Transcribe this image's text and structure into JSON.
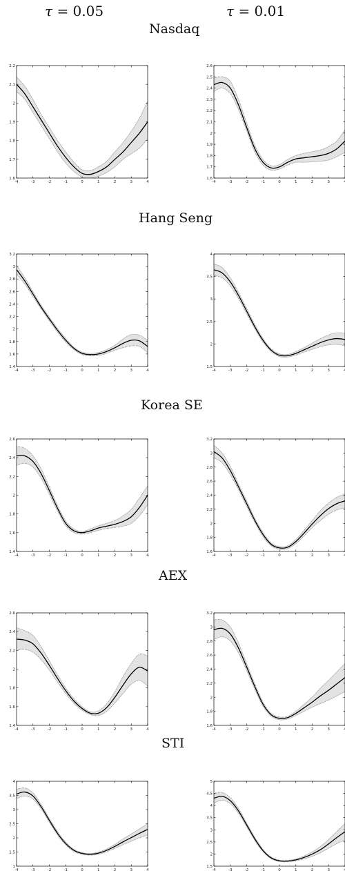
{
  "headers": {
    "col1_symbol": "τ",
    "col1_value": "= 0.05",
    "col2_symbol": "τ",
    "col2_value": "= 0.01"
  },
  "chart_data": [
    {
      "type": "line",
      "index": "Nasdaq",
      "tau": "0.05",
      "xlim": [
        -4,
        4
      ],
      "ylim": [
        1.6,
        2.2
      ],
      "xticks": [
        -4,
        -3,
        -2,
        -1,
        0,
        1,
        2,
        3,
        4
      ],
      "yticks": [
        1.6,
        1.7,
        1.8,
        1.9,
        2,
        2.1,
        2.2
      ],
      "x": [
        -4,
        -3.5,
        -3,
        -2.5,
        -2,
        -1.5,
        -1,
        -0.5,
        0,
        0.5,
        1,
        1.5,
        2,
        2.5,
        3,
        3.5,
        4
      ],
      "y": [
        2.1,
        2.05,
        1.98,
        1.91,
        1.84,
        1.77,
        1.71,
        1.66,
        1.625,
        1.62,
        1.635,
        1.66,
        1.7,
        1.74,
        1.79,
        1.84,
        1.9
      ],
      "lower": [
        2.06,
        2.02,
        1.95,
        1.88,
        1.81,
        1.74,
        1.68,
        1.635,
        1.605,
        1.6,
        1.61,
        1.63,
        1.66,
        1.7,
        1.73,
        1.76,
        1.81
      ],
      "upper": [
        2.14,
        2.09,
        2.02,
        1.94,
        1.87,
        1.8,
        1.74,
        1.685,
        1.645,
        1.64,
        1.66,
        1.69,
        1.74,
        1.79,
        1.85,
        1.92,
        2.01
      ]
    },
    {
      "type": "line",
      "index": "Nasdaq",
      "tau": "0.01",
      "xlim": [
        -4,
        4
      ],
      "ylim": [
        1.6,
        2.6
      ],
      "xticks": [
        -4,
        -3,
        -2,
        -1,
        0,
        1,
        2,
        3,
        4
      ],
      "yticks": [
        1.6,
        1.7,
        1.8,
        1.9,
        2,
        2.1,
        2.2,
        2.3,
        2.4,
        2.5,
        2.6
      ],
      "x": [
        -4,
        -3.5,
        -3,
        -2.5,
        -2,
        -1.5,
        -1,
        -0.5,
        0,
        0.5,
        1,
        1.5,
        2,
        2.5,
        3,
        3.5,
        4
      ],
      "y": [
        2.43,
        2.45,
        2.4,
        2.25,
        2.05,
        1.86,
        1.74,
        1.69,
        1.7,
        1.74,
        1.77,
        1.78,
        1.79,
        1.8,
        1.82,
        1.86,
        1.93
      ],
      "lower": [
        2.37,
        2.4,
        2.35,
        2.21,
        2.02,
        1.83,
        1.715,
        1.67,
        1.68,
        1.715,
        1.74,
        1.74,
        1.745,
        1.75,
        1.76,
        1.79,
        1.83
      ],
      "upper": [
        2.49,
        2.5,
        2.46,
        2.3,
        2.09,
        1.89,
        1.765,
        1.71,
        1.72,
        1.765,
        1.8,
        1.82,
        1.835,
        1.85,
        1.88,
        1.93,
        2.03
      ]
    },
    {
      "type": "line",
      "index": "Hang Seng",
      "tau": "0.05",
      "xlim": [
        -4,
        4
      ],
      "ylim": [
        1.4,
        3.2
      ],
      "xticks": [
        -4,
        -3,
        -2,
        -1,
        0,
        1,
        2,
        3,
        4
      ],
      "yticks": [
        1.4,
        1.6,
        1.8,
        2,
        2.2,
        2.4,
        2.6,
        2.8,
        3,
        3.2
      ],
      "x": [
        -4,
        -3.5,
        -3,
        -2.5,
        -2,
        -1.5,
        -1,
        -0.5,
        0,
        0.5,
        1,
        1.5,
        2,
        2.5,
        3,
        3.5,
        4
      ],
      "y": [
        2.95,
        2.77,
        2.56,
        2.35,
        2.16,
        1.98,
        1.82,
        1.69,
        1.61,
        1.59,
        1.6,
        1.64,
        1.7,
        1.77,
        1.82,
        1.81,
        1.72
      ],
      "lower": [
        2.88,
        2.72,
        2.52,
        2.32,
        2.13,
        1.95,
        1.79,
        1.67,
        1.59,
        1.57,
        1.575,
        1.61,
        1.66,
        1.7,
        1.73,
        1.72,
        1.62
      ],
      "upper": [
        3.02,
        2.82,
        2.6,
        2.38,
        2.19,
        2.01,
        1.85,
        1.71,
        1.63,
        1.61,
        1.625,
        1.67,
        1.74,
        1.84,
        1.91,
        1.9,
        1.82
      ]
    },
    {
      "type": "line",
      "index": "Hang Seng",
      "tau": "0.01",
      "xlim": [
        -4,
        4
      ],
      "ylim": [
        1.5,
        4
      ],
      "xticks": [
        -4,
        -3,
        -2,
        -1,
        0,
        1,
        2,
        3,
        4
      ],
      "yticks": [
        1.5,
        2,
        2.5,
        3,
        3.5,
        4
      ],
      "x": [
        -4,
        -3.5,
        -3,
        -2.5,
        -2,
        -1.5,
        -1,
        -0.5,
        0,
        0.5,
        1,
        1.5,
        2,
        2.5,
        3,
        3.5,
        4
      ],
      "y": [
        3.65,
        3.58,
        3.38,
        3.08,
        2.73,
        2.38,
        2.08,
        1.86,
        1.75,
        1.74,
        1.79,
        1.87,
        1.95,
        2.03,
        2.09,
        2.12,
        2.1
      ],
      "lower": [
        3.52,
        3.47,
        3.29,
        3.01,
        2.67,
        2.33,
        2.04,
        1.83,
        1.72,
        1.71,
        1.75,
        1.82,
        1.88,
        1.94,
        1.98,
        1.99,
        1.96
      ],
      "upper": [
        3.78,
        3.7,
        3.47,
        3.15,
        2.79,
        2.43,
        2.12,
        1.89,
        1.78,
        1.77,
        1.83,
        1.92,
        2.02,
        2.12,
        2.2,
        2.25,
        2.24
      ]
    },
    {
      "type": "line",
      "index": "Korea SE",
      "tau": "0.05",
      "xlim": [
        -4,
        4
      ],
      "ylim": [
        1.4,
        2.6
      ],
      "xticks": [
        -4,
        -3,
        -2,
        -1,
        0,
        1,
        2,
        3,
        4
      ],
      "yticks": [
        1.4,
        1.6,
        1.8,
        2,
        2.2,
        2.4,
        2.6
      ],
      "x": [
        -4,
        -3.5,
        -3,
        -2.5,
        -2,
        -1.5,
        -1,
        -0.5,
        0,
        0.5,
        1,
        1.5,
        2,
        2.5,
        3,
        3.5,
        4
      ],
      "y": [
        2.42,
        2.42,
        2.36,
        2.23,
        2.05,
        1.86,
        1.7,
        1.62,
        1.6,
        1.62,
        1.65,
        1.67,
        1.69,
        1.72,
        1.77,
        1.87,
        2.0
      ],
      "lower": [
        2.32,
        2.34,
        2.3,
        2.18,
        2.01,
        1.83,
        1.675,
        1.6,
        1.585,
        1.6,
        1.625,
        1.645,
        1.655,
        1.67,
        1.7,
        1.78,
        1.9
      ],
      "upper": [
        2.52,
        2.5,
        2.42,
        2.28,
        2.09,
        1.89,
        1.725,
        1.64,
        1.615,
        1.64,
        1.675,
        1.7,
        1.73,
        1.78,
        1.85,
        1.97,
        2.1
      ]
    },
    {
      "type": "line",
      "index": "Korea SE",
      "tau": "0.01",
      "xlim": [
        -4,
        4
      ],
      "ylim": [
        1.6,
        3.2
      ],
      "xticks": [
        -4,
        -3,
        -2,
        -1,
        0,
        1,
        2,
        3,
        4
      ],
      "yticks": [
        1.6,
        1.8,
        2,
        2.2,
        2.4,
        2.6,
        2.8,
        3,
        3.2
      ],
      "x": [
        -4,
        -3.5,
        -3,
        -2.5,
        -2,
        -1.5,
        -1,
        -0.5,
        0,
        0.5,
        1,
        1.5,
        2,
        2.5,
        3,
        3.5,
        4
      ],
      "y": [
        3.02,
        2.93,
        2.75,
        2.52,
        2.28,
        2.04,
        1.84,
        1.7,
        1.65,
        1.66,
        1.74,
        1.86,
        1.99,
        2.11,
        2.21,
        2.28,
        2.32
      ],
      "lower": [
        2.93,
        2.86,
        2.69,
        2.48,
        2.24,
        2.01,
        1.81,
        1.68,
        1.63,
        1.64,
        1.71,
        1.82,
        1.94,
        2.04,
        2.13,
        2.19,
        2.22
      ],
      "upper": [
        3.11,
        3.0,
        2.81,
        2.56,
        2.32,
        2.07,
        1.87,
        1.72,
        1.67,
        1.68,
        1.77,
        1.9,
        2.04,
        2.18,
        2.29,
        2.37,
        2.42
      ]
    },
    {
      "type": "line",
      "index": "AEX",
      "tau": "0.05",
      "xlim": [
        -4,
        4
      ],
      "ylim": [
        1.4,
        2.6
      ],
      "xticks": [
        -4,
        -3,
        -2,
        -1,
        0,
        1,
        2,
        3,
        4
      ],
      "yticks": [
        1.4,
        1.6,
        1.8,
        2,
        2.2,
        2.4,
        2.6
      ],
      "x": [
        -4,
        -3.5,
        -3,
        -2.5,
        -2,
        -1.5,
        -1,
        -0.5,
        0,
        0.5,
        1,
        1.5,
        2,
        2.5,
        3,
        3.5,
        4
      ],
      "y": [
        2.32,
        2.31,
        2.27,
        2.17,
        2.04,
        1.9,
        1.77,
        1.66,
        1.58,
        1.53,
        1.53,
        1.59,
        1.7,
        1.83,
        1.95,
        2.02,
        1.98
      ],
      "lower": [
        2.2,
        2.21,
        2.18,
        2.1,
        1.99,
        1.86,
        1.74,
        1.635,
        1.56,
        1.515,
        1.505,
        1.55,
        1.64,
        1.74,
        1.84,
        1.88,
        1.82
      ],
      "upper": [
        2.44,
        2.41,
        2.36,
        2.24,
        2.09,
        1.94,
        1.8,
        1.685,
        1.6,
        1.545,
        1.555,
        1.63,
        1.76,
        1.92,
        2.06,
        2.16,
        2.14
      ]
    },
    {
      "type": "line",
      "index": "AEX",
      "tau": "0.01",
      "xlim": [
        -4,
        4
      ],
      "ylim": [
        1.6,
        3.2
      ],
      "xticks": [
        -4,
        -3,
        -2,
        -1,
        0,
        1,
        2,
        3,
        4
      ],
      "yticks": [
        1.6,
        1.8,
        2,
        2.2,
        2.4,
        2.6,
        2.8,
        3,
        3.2
      ],
      "x": [
        -4,
        -3.5,
        -3,
        -2.5,
        -2,
        -1.5,
        -1,
        -0.5,
        0,
        0.5,
        1,
        1.5,
        2,
        2.5,
        3,
        3.5,
        4
      ],
      "y": [
        2.96,
        2.98,
        2.9,
        2.7,
        2.43,
        2.15,
        1.9,
        1.75,
        1.7,
        1.71,
        1.77,
        1.85,
        1.93,
        2.02,
        2.1,
        2.19,
        2.28
      ],
      "lower": [
        2.82,
        2.86,
        2.8,
        2.63,
        2.38,
        2.11,
        1.87,
        1.73,
        1.68,
        1.69,
        1.74,
        1.8,
        1.86,
        1.91,
        1.96,
        2.02,
        2.08
      ],
      "upper": [
        3.1,
        3.1,
        3.0,
        2.77,
        2.48,
        2.19,
        1.93,
        1.77,
        1.72,
        1.73,
        1.8,
        1.9,
        2.0,
        2.13,
        2.24,
        2.36,
        2.48
      ]
    },
    {
      "type": "line",
      "index": "STI",
      "tau": "0.05",
      "xlim": [
        -4,
        4
      ],
      "ylim": [
        1,
        4
      ],
      "xticks": [
        -4,
        -3,
        -2,
        -1,
        0,
        1,
        2,
        3,
        4
      ],
      "yticks": [
        1,
        1.5,
        2,
        2.5,
        3,
        3.5,
        4
      ],
      "x": [
        -4,
        -3.5,
        -3,
        -2.5,
        -2,
        -1.5,
        -1,
        -0.5,
        0,
        0.5,
        1,
        1.5,
        2,
        2.5,
        3,
        3.5,
        4
      ],
      "y": [
        3.55,
        3.62,
        3.48,
        3.1,
        2.62,
        2.16,
        1.8,
        1.56,
        1.45,
        1.42,
        1.46,
        1.56,
        1.7,
        1.86,
        2.01,
        2.16,
        2.3
      ],
      "lower": [
        3.38,
        3.48,
        3.37,
        3.02,
        2.55,
        2.1,
        1.75,
        1.52,
        1.42,
        1.39,
        1.42,
        1.51,
        1.63,
        1.76,
        1.88,
        2.0,
        2.1
      ],
      "upper": [
        3.72,
        3.76,
        3.59,
        3.18,
        2.69,
        2.22,
        1.85,
        1.6,
        1.48,
        1.45,
        1.5,
        1.61,
        1.77,
        1.96,
        2.14,
        2.32,
        2.5
      ]
    },
    {
      "type": "line",
      "index": "STI",
      "tau": "0.01",
      "xlim": [
        -4,
        4
      ],
      "ylim": [
        1.5,
        5
      ],
      "xticks": [
        -4,
        -3,
        -2,
        -1,
        0,
        1,
        2,
        3,
        4
      ],
      "yticks": [
        1.5,
        2,
        2.5,
        3,
        3.5,
        4,
        4.5,
        5
      ],
      "x": [
        -4,
        -3.5,
        -3,
        -2.5,
        -2,
        -1.5,
        -1,
        -0.5,
        0,
        0.5,
        1,
        1.5,
        2,
        2.5,
        3,
        3.5,
        4
      ],
      "y": [
        4.3,
        4.38,
        4.2,
        3.78,
        3.2,
        2.62,
        2.14,
        1.84,
        1.72,
        1.71,
        1.76,
        1.86,
        2.0,
        2.18,
        2.42,
        2.68,
        2.92
      ],
      "lower": [
        4.1,
        4.22,
        4.08,
        3.68,
        3.12,
        2.55,
        2.09,
        1.8,
        1.69,
        1.68,
        1.72,
        1.8,
        1.91,
        2.05,
        2.24,
        2.43,
        2.58
      ],
      "upper": [
        4.5,
        4.54,
        4.32,
        3.88,
        3.28,
        2.69,
        2.19,
        1.88,
        1.75,
        1.74,
        1.8,
        1.92,
        2.09,
        2.31,
        2.6,
        2.93,
        3.26
      ]
    }
  ]
}
